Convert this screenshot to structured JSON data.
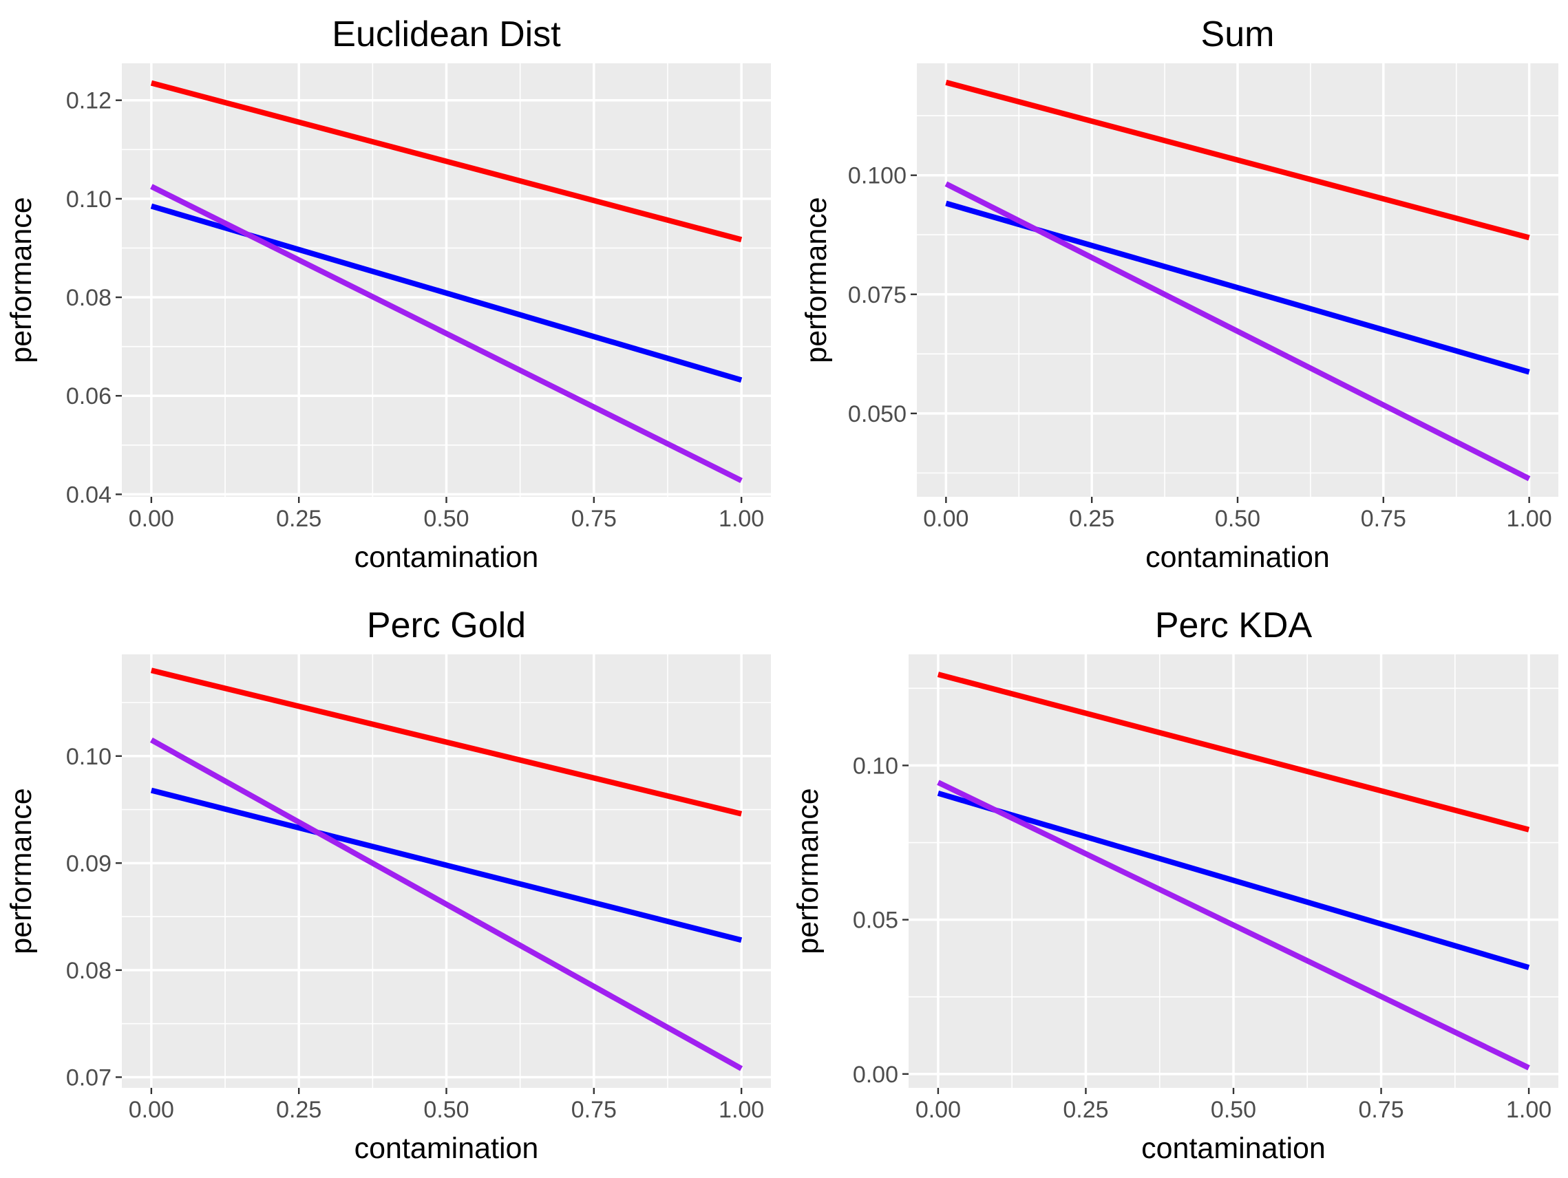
{
  "chart_data": [
    {
      "type": "line",
      "title": "Euclidean Dist",
      "xlabel": "contamination",
      "ylabel": "performance",
      "xlim": [
        -0.05,
        1.05
      ],
      "ylim": [
        0.0395,
        0.1275
      ],
      "x_ticks": [
        0,
        0.25,
        0.5,
        0.75,
        1
      ],
      "x_tick_labels": [
        "0.00",
        "0.25",
        "0.50",
        "0.75",
        "1.00"
      ],
      "y_ticks": [
        0.04,
        0.06,
        0.08,
        0.1,
        0.12
      ],
      "y_tick_labels": [
        "0.04",
        "0.06",
        "0.08",
        "0.10",
        "0.12"
      ],
      "grid": true,
      "series": [
        {
          "color": "#ff0000",
          "x": [
            0,
            1
          ],
          "y": [
            0.1235,
            0.0917
          ]
        },
        {
          "color": "#0000ff",
          "x": [
            0,
            1
          ],
          "y": [
            0.0985,
            0.0632
          ]
        },
        {
          "color": "#a020f0",
          "x": [
            0,
            1
          ],
          "y": [
            0.1025,
            0.0428
          ]
        }
      ]
    },
    {
      "type": "line",
      "title": "Sum",
      "xlabel": "contamination",
      "ylabel": "performance",
      "xlim": [
        -0.05,
        1.05
      ],
      "ylim": [
        0.0325,
        0.1235
      ],
      "x_ticks": [
        0,
        0.25,
        0.5,
        0.75,
        1
      ],
      "x_tick_labels": [
        "0.00",
        "0.25",
        "0.50",
        "0.75",
        "1.00"
      ],
      "y_ticks": [
        0.05,
        0.075,
        0.1
      ],
      "y_tick_labels": [
        "0.050",
        "0.075",
        "0.100"
      ],
      "grid": true,
      "series": [
        {
          "color": "#ff0000",
          "x": [
            0,
            1
          ],
          "y": [
            0.1195,
            0.0869
          ]
        },
        {
          "color": "#0000ff",
          "x": [
            0,
            1
          ],
          "y": [
            0.0941,
            0.0587
          ]
        },
        {
          "color": "#a020f0",
          "x": [
            0,
            1
          ],
          "y": [
            0.0982,
            0.0363
          ]
        }
      ]
    },
    {
      "type": "line",
      "title": "Perc Gold",
      "xlabel": "contamination",
      "ylabel": "performance",
      "xlim": [
        -0.05,
        1.05
      ],
      "ylim": [
        0.069,
        0.1095
      ],
      "x_ticks": [
        0,
        0.25,
        0.5,
        0.75,
        1
      ],
      "x_tick_labels": [
        "0.00",
        "0.25",
        "0.50",
        "0.75",
        "1.00"
      ],
      "y_ticks": [
        0.07,
        0.08,
        0.09,
        0.1
      ],
      "y_tick_labels": [
        "0.07",
        "0.08",
        "0.09",
        "0.10"
      ],
      "grid": true,
      "series": [
        {
          "color": "#ff0000",
          "x": [
            0,
            1
          ],
          "y": [
            0.108,
            0.0946
          ]
        },
        {
          "color": "#0000ff",
          "x": [
            0,
            1
          ],
          "y": [
            0.0968,
            0.0828
          ]
        },
        {
          "color": "#a020f0",
          "x": [
            0,
            1
          ],
          "y": [
            0.1015,
            0.0708
          ]
        }
      ]
    },
    {
      "type": "line",
      "title": "Perc KDA",
      "xlabel": "contamination",
      "ylabel": "performance",
      "xlim": [
        -0.05,
        1.05
      ],
      "ylim": [
        -0.0045,
        0.136
      ],
      "x_ticks": [
        0,
        0.25,
        0.5,
        0.75,
        1
      ],
      "x_tick_labels": [
        "0.00",
        "0.25",
        "0.50",
        "0.75",
        "1.00"
      ],
      "y_ticks": [
        0,
        0.05,
        0.1
      ],
      "y_tick_labels": [
        "0.00",
        "0.05",
        "0.10"
      ],
      "grid": true,
      "series": [
        {
          "color": "#ff0000",
          "x": [
            0,
            1
          ],
          "y": [
            0.1295,
            0.0792
          ]
        },
        {
          "color": "#0000ff",
          "x": [
            0,
            1
          ],
          "y": [
            0.091,
            0.0345
          ]
        },
        {
          "color": "#a020f0",
          "x": [
            0,
            1
          ],
          "y": [
            0.0945,
            0.002
          ]
        }
      ]
    }
  ]
}
